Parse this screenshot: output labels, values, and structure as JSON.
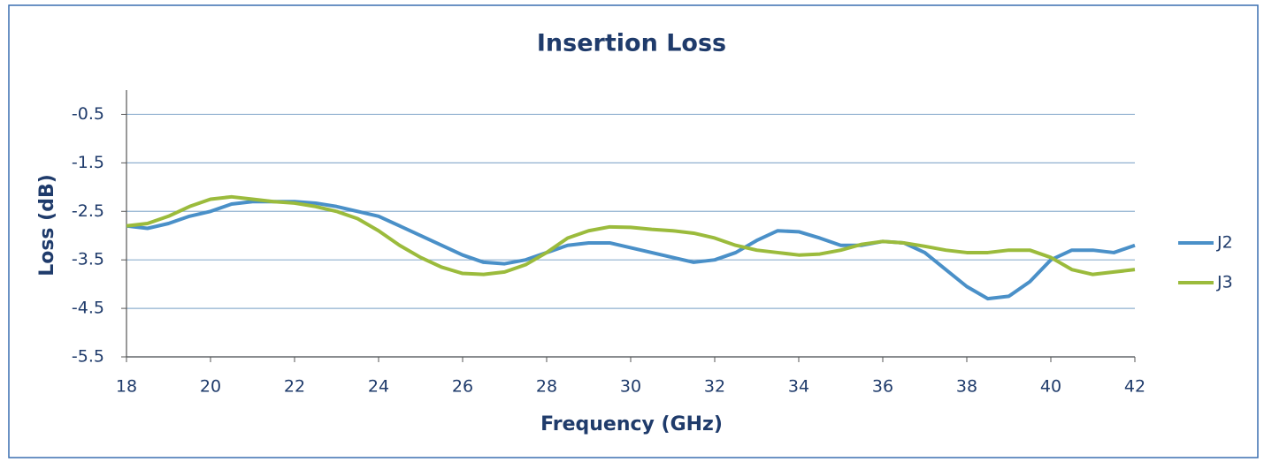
{
  "chart_data": {
    "type": "line",
    "title": "Insertion Loss",
    "xlabel": "Frequency (GHz)",
    "ylabel": "Loss (dB)",
    "x": [
      18,
      18.5,
      19,
      19.5,
      20,
      20.5,
      21,
      21.5,
      22,
      22.5,
      23,
      23.5,
      24,
      24.5,
      25,
      25.5,
      26,
      26.5,
      27,
      27.5,
      28,
      28.5,
      29,
      29.5,
      30,
      30.5,
      31,
      31.5,
      32,
      32.5,
      33,
      33.5,
      34,
      34.5,
      35,
      35.5,
      36,
      36.5,
      37,
      37.5,
      38,
      38.5,
      39,
      39.5,
      40,
      40.5,
      41,
      41.5,
      42
    ],
    "series": [
      {
        "name": "J2",
        "color": "#4a90c8",
        "values": [
          -2.8,
          -2.85,
          -2.75,
          -2.6,
          -2.5,
          -2.35,
          -2.3,
          -2.3,
          -2.3,
          -2.33,
          -2.4,
          -2.5,
          -2.6,
          -2.8,
          -3.0,
          -3.2,
          -3.4,
          -3.55,
          -3.58,
          -3.5,
          -3.35,
          -3.2,
          -3.15,
          -3.15,
          -3.25,
          -3.35,
          -3.45,
          -3.55,
          -3.5,
          -3.35,
          -3.1,
          -2.9,
          -2.92,
          -3.05,
          -3.2,
          -3.2,
          -3.12,
          -3.15,
          -3.35,
          -3.7,
          -4.05,
          -4.3,
          -4.25,
          -3.95,
          -3.5,
          -3.3,
          -3.3,
          -3.35,
          -3.2
        ]
      },
      {
        "name": "J3",
        "color": "#9bbb3c",
        "values": [
          -2.8,
          -2.75,
          -2.6,
          -2.4,
          -2.25,
          -2.2,
          -2.25,
          -2.3,
          -2.33,
          -2.4,
          -2.5,
          -2.65,
          -2.9,
          -3.2,
          -3.45,
          -3.65,
          -3.78,
          -3.8,
          -3.75,
          -3.6,
          -3.35,
          -3.05,
          -2.9,
          -2.82,
          -2.83,
          -2.87,
          -2.9,
          -2.95,
          -3.05,
          -3.2,
          -3.3,
          -3.35,
          -3.4,
          -3.38,
          -3.3,
          -3.18,
          -3.12,
          -3.15,
          -3.22,
          -3.3,
          -3.35,
          -3.35,
          -3.3,
          -3.3,
          -3.45,
          -3.7,
          -3.8,
          -3.75,
          -3.7
        ]
      }
    ],
    "xlim": [
      18,
      42
    ],
    "xticks": [
      18,
      20,
      22,
      24,
      26,
      28,
      30,
      32,
      34,
      36,
      38,
      40,
      42
    ],
    "ylim": [
      -5.5,
      0
    ],
    "yticks": [
      -0.5,
      -1.5,
      -2.5,
      -3.5,
      -4.5,
      -5.5
    ],
    "grid": true,
    "legend": "right"
  }
}
